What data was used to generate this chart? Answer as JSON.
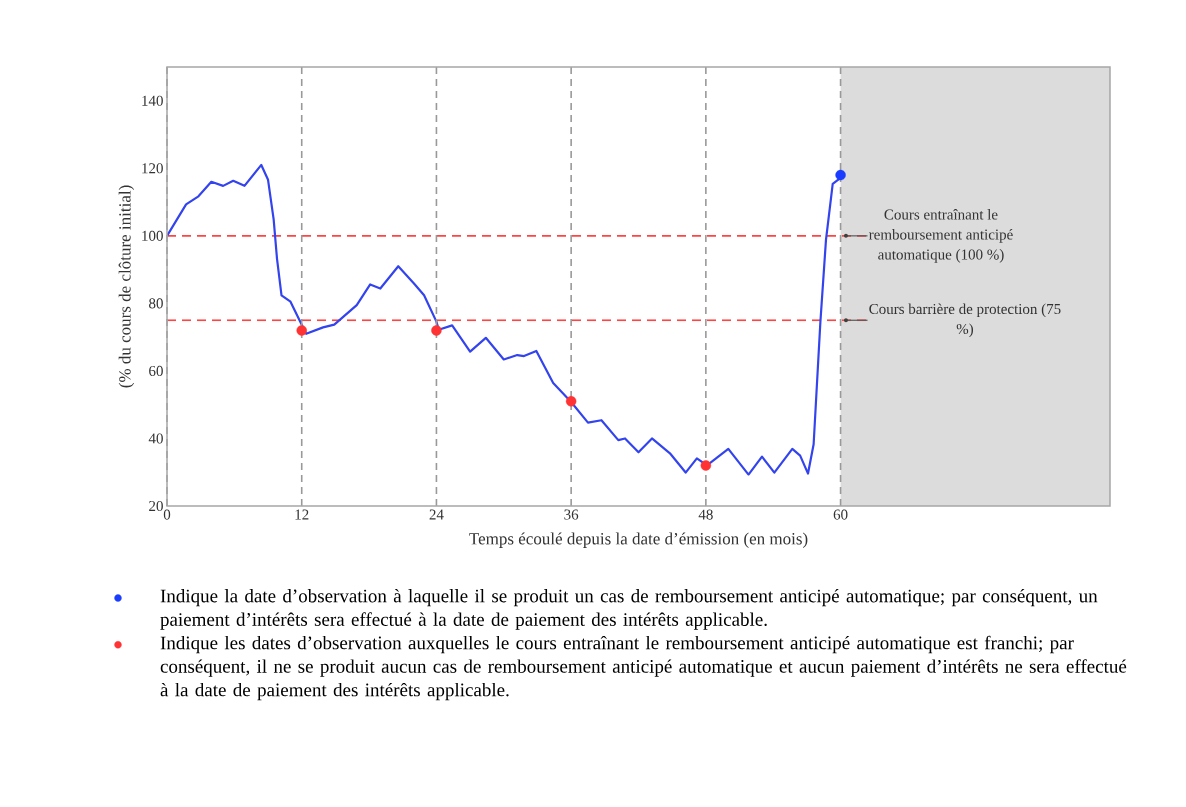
{
  "chart_data": {
    "type": "line",
    "xlabel": "Temps écoulé depuis la date d’émission (en mois)",
    "ylabel": "(% du cours de clôture initial)",
    "xlim": [
      0,
      84
    ],
    "ylim": [
      20,
      150
    ],
    "xticks": [
      0,
      12,
      24,
      36,
      48,
      60
    ],
    "yticks": [
      20,
      40,
      60,
      80,
      100,
      120,
      140
    ],
    "grid": "x",
    "legend": "bottom",
    "series": [
      {
        "type": "line",
        "color": "#3344ee",
        "line_style": "solid",
        "x": [
          0,
          1.7,
          2.8,
          3.95,
          5.0,
          5.9,
          6.9,
          8.4,
          9.0,
          9.5,
          9.8,
          10.2,
          11.0,
          12.0,
          12.4,
          13.9,
          14.9,
          16.9,
          18.1,
          19.0,
          20.6,
          22.0,
          22.9,
          24.0,
          24.2,
          25.4,
          27.0,
          28.4,
          30.0,
          31.2,
          31.8,
          32.9,
          34.4,
          36.0,
          37.5,
          38.7,
          40.2,
          40.8,
          42.0,
          43.2,
          44.8,
          46.2,
          47.2,
          48.1,
          50.0,
          51.8,
          53.0,
          54.1,
          55.7,
          56.4,
          57.1,
          57.6,
          58.2,
          58.7,
          59.3,
          60.0
        ],
        "values": [
          100,
          109.3,
          111.7,
          116,
          114.8,
          116.3,
          114.8,
          121,
          116.6,
          104.9,
          93.2,
          82.4,
          80.5,
          73.7,
          71,
          72.9,
          73.7,
          79.5,
          85.6,
          84.4,
          91,
          85.9,
          82.4,
          74.6,
          72.2,
          73.5,
          65.7,
          69.8,
          63.4,
          64.7,
          64.4,
          65.9,
          56.4,
          50.8,
          44.7,
          45.4,
          39.5,
          40,
          35.9,
          40,
          35.6,
          29.9,
          34.1,
          32,
          36.9,
          29.3,
          34.6,
          29.9,
          36.9,
          34.9,
          29.6,
          38.3,
          74.4,
          98.8,
          115.4,
          117.2
        ]
      },
      {
        "type": "scatter",
        "marker": "circle",
        "color": "#1a3cff",
        "name": "Indique la date d’observation à laquelle il se produit un cas de remboursement anticipé automatique; par conséquent, un paiement d’intérêts sera effectué à la date de paiement des intérêts applicable.",
        "x": [
          60
        ],
        "values": [
          118
        ]
      },
      {
        "type": "scatter",
        "marker": "circle",
        "color": "#ff3333",
        "name": "Indique les dates d’observation auxquelles le cours entraînant le remboursement anticipé automatique est franchi; par conséquent, il ne se produit aucun cas de remboursement anticipé automatique et aucun paiement d’intérêts ne sera effectué à la date de paiement des intérêts applicable.",
        "x": [
          12,
          24,
          36,
          48
        ],
        "values": [
          72,
          72,
          51,
          32
        ]
      }
    ],
    "ref_lines": [
      {
        "axis": "y",
        "value": 100,
        "label": "Cours entraînant le remboursement anticipé automatique (100 %)",
        "color": "#ff4444",
        "line_style": "dashed"
      },
      {
        "axis": "y",
        "value": 75,
        "label": "Cours barrière de protection (75 %)",
        "color": "#ff4444",
        "line_style": "dashed"
      }
    ],
    "bands": [
      {
        "axis": "x",
        "from": 60,
        "to": 84,
        "color": "#dcdcdc"
      }
    ]
  }
}
